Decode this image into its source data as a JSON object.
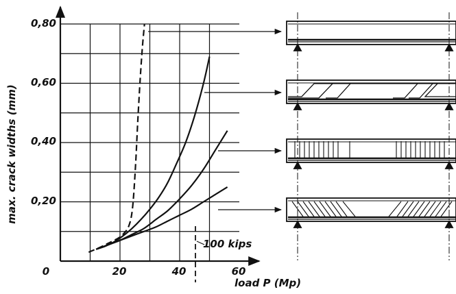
{
  "chart_data": {
    "type": "line",
    "xlabel": "load  P (Mp)",
    "ylabel": "max. crack widths (mm)",
    "xlim": [
      0,
      60
    ],
    "ylim": [
      0,
      0.8
    ],
    "x_ticks": [
      {
        "value": 0,
        "label": "0"
      },
      {
        "value": 20,
        "label": "20"
      },
      {
        "value": 40,
        "label": "40"
      },
      {
        "value": 60,
        "label": "60"
      }
    ],
    "y_ticks": [
      {
        "value": 0.2,
        "label": "0,20"
      },
      {
        "value": 0.4,
        "label": "0,40"
      },
      {
        "value": 0.6,
        "label": "0,60"
      },
      {
        "value": 0.8,
        "label": "0,80"
      }
    ],
    "x_grid": [
      10,
      20,
      30,
      40,
      50
    ],
    "y_grid": [
      0.1,
      0.2,
      0.3,
      0.4,
      0.5,
      0.6,
      0.7,
      0.8
    ],
    "grid": true,
    "annotation": {
      "text": "100 kips",
      "x": 45.4
    },
    "series": [
      {
        "style": "dashed",
        "beam": "no-web-reinforcement",
        "x": [
          9.5,
          13,
          16,
          19,
          21,
          23,
          24.2,
          25.2,
          26.0,
          26.8,
          27.5,
          28.2
        ],
        "y": [
          0.03,
          0.045,
          0.06,
          0.075,
          0.09,
          0.12,
          0.18,
          0.32,
          0.48,
          0.62,
          0.72,
          0.8
        ]
      },
      {
        "style": "solid",
        "beam": "bent-up-bars",
        "x": [
          12,
          15,
          18,
          21,
          24,
          27,
          30,
          33,
          36,
          39,
          42,
          45,
          48,
          50
        ],
        "y": [
          0.04,
          0.05,
          0.065,
          0.085,
          0.11,
          0.14,
          0.175,
          0.215,
          0.265,
          0.33,
          0.4,
          0.49,
          0.6,
          0.69
        ]
      },
      {
        "style": "solid",
        "beam": "vertical-stirrups",
        "x": [
          12,
          16,
          20,
          24,
          28,
          32,
          36,
          40,
          44,
          48,
          52,
          56
        ],
        "y": [
          0.04,
          0.055,
          0.07,
          0.09,
          0.11,
          0.14,
          0.17,
          0.21,
          0.255,
          0.31,
          0.375,
          0.44
        ]
      },
      {
        "style": "solid",
        "beam": "inclined-stirrups",
        "x": [
          12,
          16,
          20,
          24,
          28,
          32,
          36,
          40,
          44,
          48,
          52,
          56
        ],
        "y": [
          0.04,
          0.055,
          0.07,
          0.085,
          0.1,
          0.115,
          0.135,
          0.155,
          0.175,
          0.2,
          0.225,
          0.25
        ]
      }
    ]
  }
}
